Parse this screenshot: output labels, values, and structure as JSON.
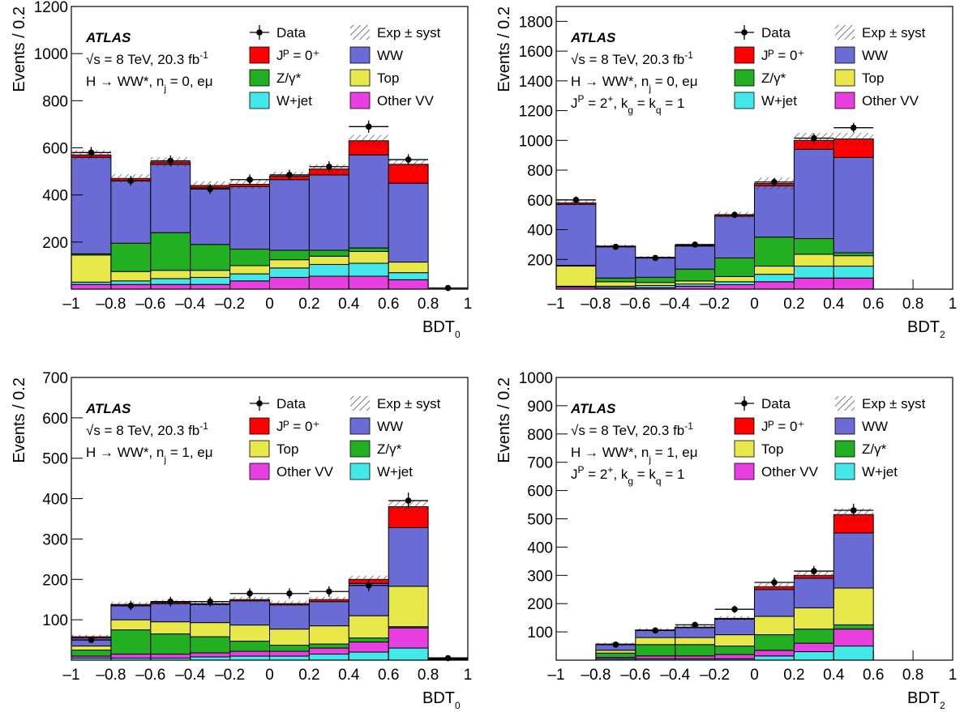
{
  "chart_data": [
    {
      "type": "histogram",
      "experiment": "ATLAS",
      "annotation": [
        [
          {
            "text": "√s = 8 TeV, 20.3 fb"
          },
          {
            "text": "-1",
            "shift": "sup"
          }
        ],
        [
          {
            "text": "H → WW*, n"
          },
          {
            "text": "j",
            "shift": "sub"
          },
          {
            "text": " = 0, eμ"
          }
        ]
      ],
      "ylabel": "Events / 0.2",
      "xlabel": [
        {
          "text": "BDT"
        },
        {
          "text": "0",
          "shift": "sub"
        }
      ],
      "bins": [
        -1,
        -0.8,
        -0.6,
        -0.4,
        -0.2,
        0,
        0.2,
        0.4,
        0.6,
        0.8,
        1
      ],
      "xlim": [
        -1,
        1
      ],
      "xticks": [
        {
          "value": -1,
          "label": "–1"
        },
        {
          "value": -0.8,
          "label": "–0.8"
        },
        {
          "value": -0.6,
          "label": "–0.6"
        },
        {
          "value": -0.4,
          "label": "–0.4"
        },
        {
          "value": -0.2,
          "label": "–0.2"
        },
        0,
        0.2,
        0.4,
        0.6,
        0.8,
        1
      ],
      "ylim": [
        0,
        1200
      ],
      "yticks": [
        200,
        400,
        600,
        800,
        1000,
        1200
      ],
      "series": [
        {
          "name": "Other VV",
          "color": "#e840e0",
          "values": [
            20,
            20,
            20,
            20,
            35,
            50,
            55,
            55,
            40,
            0
          ]
        },
        {
          "name": "W+jet",
          "color": "#44e8e8",
          "values": [
            10,
            15,
            25,
            30,
            30,
            40,
            50,
            55,
            30,
            0
          ]
        },
        {
          "name": "Top",
          "color": "#e8e84a",
          "values": [
            115,
            40,
            35,
            30,
            35,
            35,
            35,
            50,
            45,
            0
          ]
        },
        {
          "name": "Z/γ*",
          "color": "#22b022",
          "values": [
            5,
            120,
            160,
            110,
            70,
            40,
            25,
            15,
            0,
            0
          ]
        },
        {
          "name": "WW",
          "color": "#6b6bd6",
          "values": [
            410,
            265,
            290,
            240,
            265,
            300,
            320,
            395,
            335,
            0
          ]
        },
        {
          "name": "Jᴾ = 0⁺",
          "color": "#ff0000",
          "values": [
            10,
            10,
            10,
            10,
            10,
            15,
            25,
            60,
            80,
            0
          ]
        }
      ],
      "uncertainty": {
        "name": "Exp ± syst",
        "values": [
          20,
          18,
          20,
          18,
          18,
          18,
          20,
          25,
          22,
          0
        ]
      },
      "data": {
        "name": "Data",
        "values": [
          580,
          460,
          545,
          425,
          465,
          485,
          520,
          690,
          550,
          5
        ],
        "errors": [
          24,
          21,
          23,
          21,
          22,
          22,
          23,
          26,
          23,
          2
        ]
      }
    },
    {
      "type": "histogram",
      "experiment": "ATLAS",
      "annotation": [
        [
          {
            "text": "√s = 8 TeV, 20.3 fb"
          },
          {
            "text": "-1",
            "shift": "sup"
          }
        ],
        [
          {
            "text": "H → WW*, n"
          },
          {
            "text": "j",
            "shift": "sub"
          },
          {
            "text": " = 0, eμ"
          }
        ],
        [
          {
            "text": "J"
          },
          {
            "text": "P",
            "shift": "sup"
          },
          {
            "text": " = 2"
          },
          {
            "text": "+",
            "shift": "sup"
          },
          {
            "text": ", k"
          },
          {
            "text": "g",
            "shift": "sub"
          },
          {
            "text": " = k"
          },
          {
            "text": "q",
            "shift": "sub"
          },
          {
            "text": " = 1"
          }
        ]
      ],
      "ylabel": "Events / 0.2",
      "xlabel": [
        {
          "text": "BDT"
        },
        {
          "text": "2",
          "shift": "sub"
        }
      ],
      "bins": [
        -1,
        -0.8,
        -0.6,
        -0.4,
        -0.2,
        0,
        0.2,
        0.4,
        0.6,
        0.8,
        1
      ],
      "xlim": [
        -1,
        1
      ],
      "xticks": [
        {
          "value": -1,
          "label": "–1"
        },
        {
          "value": -0.8,
          "label": "–0.8"
        },
        {
          "value": -0.6,
          "label": "–0.6"
        },
        {
          "value": -0.4,
          "label": "–0.4"
        },
        {
          "value": -0.2,
          "label": "–0.2"
        },
        0,
        0.2,
        0.4,
        0.6,
        0.8,
        1
      ],
      "ylim": [
        0,
        1900
      ],
      "yticks": [
        200,
        400,
        600,
        800,
        1000,
        1200,
        1400,
        1600,
        1800
      ],
      "series": [
        {
          "name": "Other VV",
          "color": "#e840e0",
          "values": [
            15,
            10,
            10,
            20,
            30,
            50,
            75,
            75,
            0,
            0
          ]
        },
        {
          "name": "W+jet",
          "color": "#44e8e8",
          "values": [
            5,
            10,
            15,
            15,
            20,
            50,
            80,
            80,
            0,
            0
          ]
        },
        {
          "name": "Top",
          "color": "#e8e84a",
          "values": [
            135,
            30,
            20,
            20,
            35,
            55,
            80,
            70,
            0,
            0
          ]
        },
        {
          "name": "Z/γ*",
          "color": "#22b022",
          "values": [
            5,
            25,
            35,
            80,
            125,
            195,
            105,
            20,
            0,
            0
          ]
        },
        {
          "name": "WW",
          "color": "#6b6bd6",
          "values": [
            410,
            210,
            130,
            155,
            280,
            345,
            600,
            640,
            0,
            0
          ]
        },
        {
          "name": "Jᴾ = 0⁺",
          "color": "#ff0000",
          "values": [
            10,
            5,
            5,
            5,
            10,
            15,
            60,
            125,
            0,
            0
          ]
        }
      ],
      "uncertainty": {
        "name": "Exp ± syst",
        "values": [
          15,
          10,
          8,
          10,
          20,
          40,
          50,
          40,
          0,
          0
        ]
      },
      "data": {
        "name": "Data",
        "values": [
          600,
          285,
          210,
          300,
          500,
          720,
          1015,
          1085,
          null,
          null
        ],
        "errors": [
          24,
          17,
          14,
          17,
          22,
          27,
          32,
          33,
          null,
          null
        ]
      }
    },
    {
      "type": "histogram",
      "experiment": "ATLAS",
      "annotation": [
        [
          {
            "text": "√s = 8 TeV, 20.3 fb"
          },
          {
            "text": "-1",
            "shift": "sup"
          }
        ],
        [
          {
            "text": "H → WW*, n"
          },
          {
            "text": "j",
            "shift": "sub"
          },
          {
            "text": " = 1, eμ"
          }
        ]
      ],
      "ylabel": "Events / 0.2",
      "xlabel": [
        {
          "text": "BDT"
        },
        {
          "text": "0",
          "shift": "sub"
        }
      ],
      "bins": [
        -1,
        -0.8,
        -0.6,
        -0.4,
        -0.2,
        0,
        0.2,
        0.4,
        0.6,
        0.8,
        1
      ],
      "xlim": [
        -1,
        1
      ],
      "xticks": [
        {
          "value": -1,
          "label": "–1"
        },
        {
          "value": -0.8,
          "label": "–0.8"
        },
        {
          "value": -0.6,
          "label": "–0.6"
        },
        {
          "value": -0.4,
          "label": "–0.4"
        },
        {
          "value": -0.2,
          "label": "–0.2"
        },
        0,
        0.2,
        0.4,
        0.6,
        0.8,
        1
      ],
      "ylim": [
        0,
        700
      ],
      "yticks": [
        100,
        200,
        300,
        400,
        500,
        600,
        700
      ],
      "series": [
        {
          "name": "W+jet",
          "color": "#44e8e8",
          "values": [
            5,
            5,
            5,
            8,
            10,
            10,
            15,
            20,
            30,
            2
          ]
        },
        {
          "name": "Other VV",
          "color": "#e840e0",
          "values": [
            5,
            10,
            10,
            10,
            12,
            12,
            15,
            25,
            50,
            1
          ]
        },
        {
          "name": "Z/γ*",
          "color": "#22b022",
          "values": [
            15,
            60,
            50,
            40,
            25,
            15,
            10,
            10,
            3,
            1
          ]
        },
        {
          "name": "Top",
          "color": "#e8e84a",
          "values": [
            10,
            25,
            30,
            35,
            40,
            40,
            45,
            55,
            100,
            1
          ]
        },
        {
          "name": "WW",
          "color": "#6b6bd6",
          "values": [
            20,
            35,
            45,
            45,
            60,
            60,
            60,
            80,
            145,
            1
          ]
        },
        {
          "name": "Jᴾ = 0⁺",
          "color": "#ff0000",
          "values": [
            3,
            3,
            3,
            2,
            3,
            3,
            5,
            10,
            52,
            0
          ]
        }
      ],
      "uncertainty": {
        "name": "Exp ± syst",
        "values": [
          5,
          6,
          6,
          6,
          7,
          7,
          7,
          9,
          15,
          0
        ]
      },
      "data": {
        "name": "Data",
        "values": [
          50,
          135,
          145,
          145,
          165,
          165,
          170,
          185,
          395,
          5
        ],
        "errors": [
          7,
          12,
          12,
          12,
          13,
          13,
          13,
          14,
          20,
          2
        ]
      }
    },
    {
      "type": "histogram",
      "experiment": "ATLAS",
      "annotation": [
        [
          {
            "text": "√s = 8 TeV, 20.3 fb"
          },
          {
            "text": "-1",
            "shift": "sup"
          }
        ],
        [
          {
            "text": "H → WW*, n"
          },
          {
            "text": "j",
            "shift": "sub"
          },
          {
            "text": " = 1, eμ"
          }
        ],
        [
          {
            "text": "J"
          },
          {
            "text": "P",
            "shift": "sup"
          },
          {
            "text": " = 2"
          },
          {
            "text": "+",
            "shift": "sup"
          },
          {
            "text": ", k"
          },
          {
            "text": "g",
            "shift": "sub"
          },
          {
            "text": " = k"
          },
          {
            "text": "q",
            "shift": "sub"
          },
          {
            "text": " = 1"
          }
        ]
      ],
      "ylabel": "Events / 0.2",
      "xlabel": [
        {
          "text": "BDT"
        },
        {
          "text": "2",
          "shift": "sub"
        }
      ],
      "bins": [
        -1,
        -0.8,
        -0.6,
        -0.4,
        -0.2,
        0,
        0.2,
        0.4,
        0.6,
        0.8,
        1
      ],
      "xlim": [
        -1,
        1
      ],
      "xticks": [
        {
          "value": -1,
          "label": "–1"
        },
        {
          "value": -0.8,
          "label": "–0.8"
        },
        {
          "value": -0.6,
          "label": "–0.6"
        },
        {
          "value": -0.4,
          "label": "–0.4"
        },
        {
          "value": -0.2,
          "label": "–0.2"
        },
        0,
        0.2,
        0.4,
        0.6,
        0.8,
        1
      ],
      "ylim": [
        0,
        1000
      ],
      "yticks": [
        100,
        200,
        300,
        400,
        500,
        600,
        700,
        800,
        900,
        1000
      ],
      "series": [
        {
          "name": "W+jet",
          "color": "#44e8e8",
          "values": [
            0,
            5,
            5,
            5,
            5,
            15,
            30,
            50,
            0,
            0
          ]
        },
        {
          "name": "Other VV",
          "color": "#e840e0",
          "values": [
            0,
            5,
            10,
            10,
            15,
            20,
            30,
            60,
            0,
            0
          ]
        },
        {
          "name": "Z/γ*",
          "color": "#22b022",
          "values": [
            0,
            15,
            40,
            40,
            30,
            55,
            50,
            15,
            0,
            0
          ]
        },
        {
          "name": "Top",
          "color": "#e8e84a",
          "values": [
            0,
            10,
            25,
            25,
            40,
            65,
            75,
            130,
            0,
            0
          ]
        },
        {
          "name": "WW",
          "color": "#6b6bd6",
          "values": [
            0,
            20,
            25,
            35,
            55,
            95,
            105,
            195,
            0,
            0
          ]
        },
        {
          "name": "Jᴾ = 0⁺",
          "color": "#ff0000",
          "values": [
            0,
            2,
            2,
            2,
            3,
            10,
            10,
            65,
            0,
            0
          ]
        }
      ],
      "uncertainty": {
        "name": "Exp ± syst",
        "values": [
          0,
          5,
          6,
          7,
          8,
          12,
          14,
          22,
          0,
          0
        ]
      },
      "data": {
        "name": "Data",
        "values": [
          null,
          55,
          105,
          125,
          180,
          275,
          315,
          530,
          null,
          null
        ],
        "errors": [
          null,
          7,
          10,
          11,
          13,
          17,
          18,
          23,
          null,
          null
        ]
      }
    }
  ]
}
